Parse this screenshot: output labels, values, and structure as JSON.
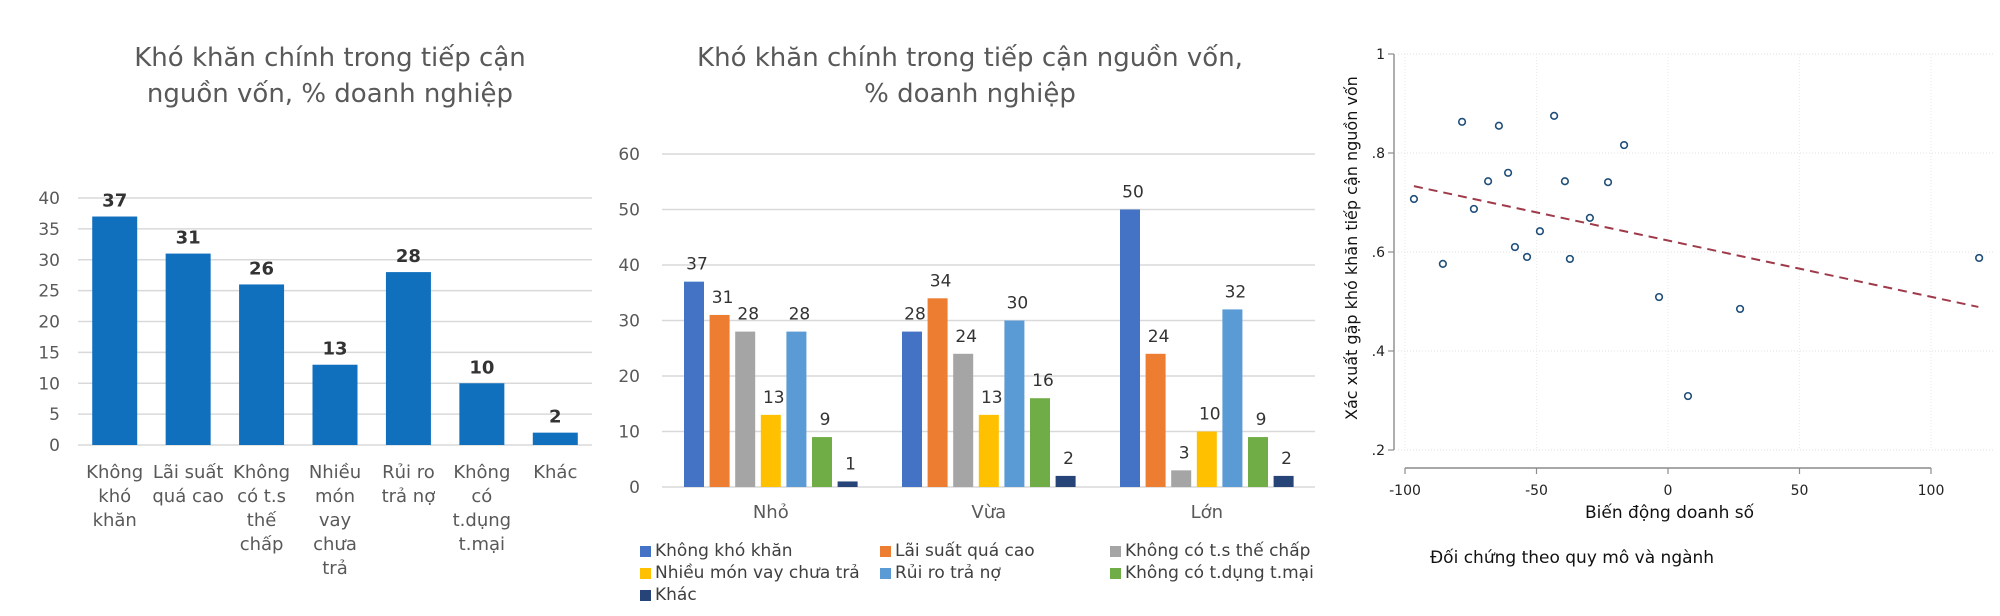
{
  "chart_data": [
    {
      "type": "bar",
      "title": "Khó khăn chính trong tiếp cận nguồn vốn, % doanh nghiệp",
      "title_lines": [
        "Khó khăn chính trong tiếp cận",
        "nguồn vốn, % doanh nghiệp"
      ],
      "xlabel": "",
      "ylabel": "",
      "ylim": [
        0,
        40
      ],
      "yticks": [
        0,
        5,
        10,
        15,
        20,
        25,
        30,
        35,
        40
      ],
      "grid": true,
      "bar_color": "#1170BE",
      "categories": [
        "Không khó khăn",
        "Lãi suất quá cao",
        "Không có t.s thế chấp",
        "Nhiều món vay chưa trả",
        "Rủi ro trả nợ",
        "Không có t.dụng t.mại",
        "Khác"
      ],
      "category_lines": [
        [
          "Không",
          "khó",
          "khăn"
        ],
        [
          "Lãi suất",
          "quá cao"
        ],
        [
          "Không",
          "có t.s",
          "thế",
          "chấp"
        ],
        [
          "Nhiều",
          "món",
          "vay",
          "chưa",
          "trả"
        ],
        [
          "Rủi ro",
          "trả nợ"
        ],
        [
          "Không",
          "có",
          "t.dụng",
          "t.mại"
        ],
        [
          "Khác"
        ]
      ],
      "values": [
        37,
        31,
        26,
        13,
        28,
        10,
        2
      ],
      "data_labels": true
    },
    {
      "type": "bar",
      "title": "Khó khăn chính trong tiếp cận nguồn vốn, % doanh nghiệp",
      "title_lines": [
        "Khó khăn chính trong tiếp cận nguồn vốn,",
        "% doanh nghiệp"
      ],
      "xlabel": "",
      "ylabel": "",
      "ylim": [
        0,
        60
      ],
      "yticks": [
        0,
        10,
        20,
        30,
        40,
        50,
        60
      ],
      "grid": true,
      "legend_position": "bottom",
      "categories": [
        "Nhỏ",
        "Vừa",
        "Lớn"
      ],
      "series": [
        {
          "name": "Không khó khăn",
          "color": "#4472C4",
          "values": [
            37,
            28,
            50
          ]
        },
        {
          "name": "Lãi suất quá cao",
          "color": "#ED7D31",
          "values": [
            31,
            34,
            24
          ]
        },
        {
          "name": "Không có t.s thế chấp",
          "color": "#A5A5A5",
          "values": [
            28,
            24,
            3
          ]
        },
        {
          "name": "Nhiều món vay chưa trả",
          "color": "#FFC000",
          "values": [
            13,
            13,
            10
          ]
        },
        {
          "name": "Rủi ro trả nợ",
          "color": "#5B9BD5",
          "values": [
            28,
            30,
            32
          ]
        },
        {
          "name": "Không có t.dụng t.mại",
          "color": "#70AD47",
          "values": [
            9,
            16,
            9
          ]
        },
        {
          "name": "Khác",
          "color": "#264478",
          "values": [
            1,
            2,
            2
          ]
        }
      ],
      "data_labels": true
    },
    {
      "type": "scatter",
      "title": "",
      "xlabel": "Biến động doanh số",
      "ylabel": "Xác xuất gặp khó khăn tiếp cận nguồn vốn",
      "note": "Đối chứng theo quy mô và ngành",
      "xlim": [
        -100,
        125
      ],
      "ylim": [
        0.2,
        1.0
      ],
      "xticks": [
        -100,
        -50,
        0,
        50,
        100
      ],
      "xtick_labels": [
        "-100",
        "-50",
        "0",
        "50",
        "100"
      ],
      "yticks": [
        0.2,
        0.4,
        0.6,
        0.8,
        1.0
      ],
      "ytick_labels": [
        ".2",
        ".4",
        ".6",
        ".8",
        "1"
      ],
      "grid": true,
      "point_color": "#1F4E79",
      "fit_line_color": "#9E3A4A",
      "points": [
        {
          "x": -96.6,
          "y": 0.707
        },
        {
          "x": -85.6,
          "y": 0.576
        },
        {
          "x": -78.3,
          "y": 0.863
        },
        {
          "x": -73.8,
          "y": 0.687
        },
        {
          "x": -68.4,
          "y": 0.743
        },
        {
          "x": -64.3,
          "y": 0.855
        },
        {
          "x": -60.8,
          "y": 0.76
        },
        {
          "x": -58.2,
          "y": 0.61
        },
        {
          "x": -53.6,
          "y": 0.59
        },
        {
          "x": -48.7,
          "y": 0.642
        },
        {
          "x": -43.3,
          "y": 0.875
        },
        {
          "x": -39.2,
          "y": 0.743
        },
        {
          "x": -37.3,
          "y": 0.586
        },
        {
          "x": -29.7,
          "y": 0.669
        },
        {
          "x": -22.8,
          "y": 0.741
        },
        {
          "x": -16.7,
          "y": 0.816
        },
        {
          "x": -3.4,
          "y": 0.509
        },
        {
          "x": 7.6,
          "y": 0.309
        },
        {
          "x": 27.4,
          "y": 0.485
        },
        {
          "x": 118.3,
          "y": 0.588
        }
      ],
      "fit_line": {
        "x": [
          -96.6,
          118.0
        ],
        "y": [
          0.733,
          0.489
        ],
        "style": "dashed"
      }
    }
  ]
}
